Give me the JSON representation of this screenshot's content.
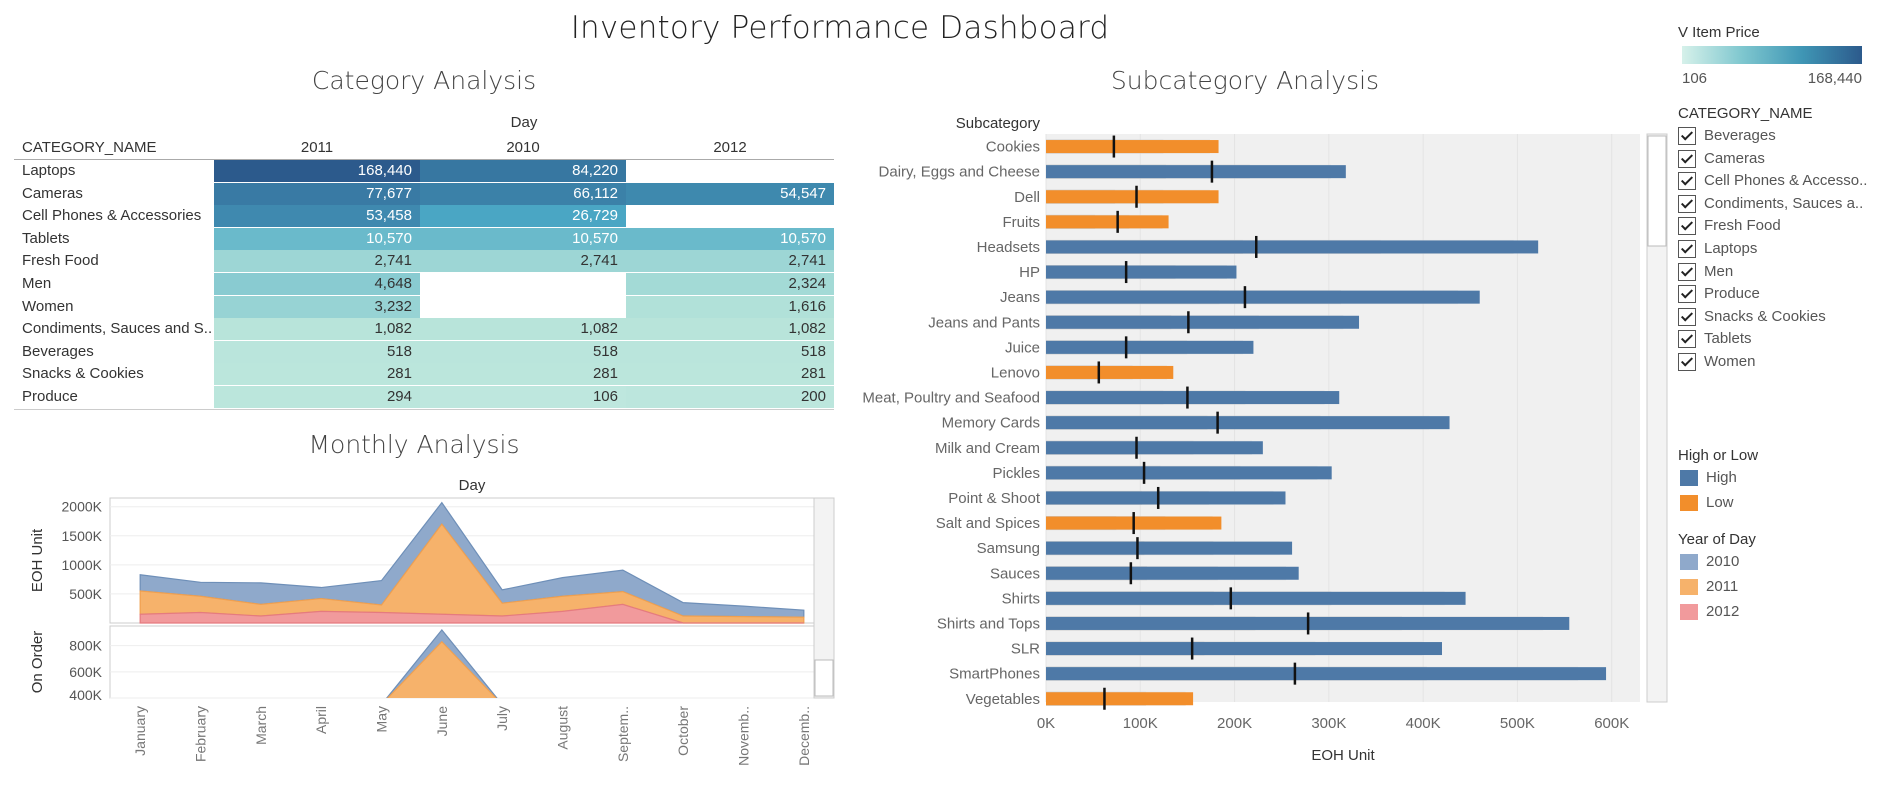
{
  "dashboard_title": "Inventory Performance Dashboard",
  "colors": {
    "high": "#4e79a7",
    "low": "#f28e2b",
    "y2010": "#8fa9cb",
    "y2011": "#f6b26b",
    "y2012": "#f19a9c",
    "price_min": "#d6f1ea",
    "price_max": "#2c5a8c"
  },
  "category_analysis": {
    "title": "Category Analysis",
    "column_group_header": "Day",
    "row_header": "CATEGORY_NAME",
    "years": [
      "2011",
      "2010",
      "2012"
    ],
    "rows": [
      {
        "name": "Laptops",
        "values": [
          "168,440",
          "84,220",
          ""
        ],
        "raw": [
          168440,
          84220,
          null
        ]
      },
      {
        "name": "Cameras",
        "values": [
          "77,677",
          "66,112",
          "54,547"
        ],
        "raw": [
          77677,
          66112,
          54547
        ]
      },
      {
        "name": "Cell Phones & Accessories",
        "values": [
          "53,458",
          "26,729",
          ""
        ],
        "raw": [
          53458,
          26729,
          null
        ]
      },
      {
        "name": "Tablets",
        "values": [
          "10,570",
          "10,570",
          "10,570"
        ],
        "raw": [
          10570,
          10570,
          10570
        ]
      },
      {
        "name": "Fresh Food",
        "values": [
          "2,741",
          "2,741",
          "2,741"
        ],
        "raw": [
          2741,
          2741,
          2741
        ]
      },
      {
        "name": "Men",
        "values": [
          "4,648",
          "",
          "2,324"
        ],
        "raw": [
          4648,
          null,
          2324
        ]
      },
      {
        "name": "Women",
        "values": [
          "3,232",
          "",
          "1,616"
        ],
        "raw": [
          3232,
          null,
          1616
        ]
      },
      {
        "name": "Condiments, Sauces and S..",
        "values": [
          "1,082",
          "1,082",
          "1,082"
        ],
        "raw": [
          1082,
          1082,
          1082
        ]
      },
      {
        "name": "Beverages",
        "values": [
          "518",
          "518",
          "518"
        ],
        "raw": [
          518,
          518,
          518
        ]
      },
      {
        "name": "Snacks & Cookies",
        "values": [
          "281",
          "281",
          "281"
        ],
        "raw": [
          281,
          281,
          281
        ]
      },
      {
        "name": "Produce",
        "values": [
          "294",
          "106",
          "200"
        ],
        "raw": [
          294,
          106,
          200
        ]
      }
    ]
  },
  "monthly_analysis": {
    "title": "Monthly Analysis",
    "x_header": "Day",
    "ylabel_top": "EOH Unit",
    "ylabel_bottom": "On Order",
    "top_ticks": [
      "2000K",
      "1500K",
      "1000K",
      "500K"
    ],
    "bottom_ticks": [
      "800K",
      "600K",
      "400K"
    ]
  },
  "subcategory_analysis": {
    "title": "Subcategory Analysis",
    "row_header": "Subcategory",
    "xlabel": "EOH Unit",
    "x_ticks": [
      "0K",
      "100K",
      "200K",
      "300K",
      "400K",
      "500K",
      "600K"
    ]
  },
  "legends": {
    "price_title": "V Item Price",
    "price_min_label": "106",
    "price_max_label": "168,440",
    "category_title": "CATEGORY_NAME",
    "categories": [
      "Beverages",
      "Cameras",
      "Cell Phones & Accesso..",
      "Condiments, Sauces a..",
      "Fresh Food",
      "Laptops",
      "Men",
      "Produce",
      "Snacks & Cookies",
      "Tablets",
      "Women"
    ],
    "high_low_title": "High or Low",
    "high_label": "High",
    "low_label": "Low",
    "year_title": "Year of Day",
    "year_labels": [
      "2010",
      "2011",
      "2012"
    ]
  },
  "chart_data": [
    {
      "type": "table",
      "title": "Category Analysis",
      "columns": [
        "2011",
        "2010",
        "2012"
      ],
      "rows": [
        "Laptops",
        "Cameras",
        "Cell Phones & Accessories",
        "Tablets",
        "Fresh Food",
        "Men",
        "Women",
        "Condiments, Sauces and S..",
        "Beverages",
        "Snacks & Cookies",
        "Produce"
      ],
      "values": [
        [
          168440,
          84220,
          null
        ],
        [
          77677,
          66112,
          54547
        ],
        [
          53458,
          26729,
          null
        ],
        [
          10570,
          10570,
          10570
        ],
        [
          2741,
          2741,
          2741
        ],
        [
          4648,
          null,
          2324
        ],
        [
          3232,
          null,
          1616
        ],
        [
          1082,
          1082,
          1082
        ],
        [
          518,
          518,
          518
        ],
        [
          281,
          281,
          281
        ],
        [
          294,
          106,
          200
        ]
      ]
    },
    {
      "type": "area",
      "title": "Monthly Analysis",
      "categories": [
        "January",
        "February",
        "March",
        "April",
        "May",
        "June",
        "July",
        "August",
        "Septem..",
        "October",
        "Novemb..",
        "Decemb.."
      ],
      "ylabel": "EOH Unit",
      "ylim": [
        0,
        2150000
      ],
      "stacked": true,
      "series": [
        {
          "name": "2012",
          "values": [
            150000,
            180000,
            120000,
            200000,
            180000,
            150000,
            120000,
            200000,
            320000,
            0,
            0,
            0
          ]
        },
        {
          "name": "2011",
          "values": [
            400000,
            280000,
            200000,
            220000,
            130000,
            1550000,
            220000,
            260000,
            220000,
            120000,
            110000,
            100000
          ]
        },
        {
          "name": "2010",
          "values": [
            280000,
            240000,
            370000,
            190000,
            420000,
            370000,
            230000,
            320000,
            370000,
            230000,
            180000,
            120000
          ]
        }
      ]
    },
    {
      "type": "area",
      "title": "",
      "categories": [
        "January",
        "February",
        "March",
        "April",
        "May",
        "June",
        "July",
        "August",
        "Septem..",
        "October",
        "Novemb..",
        "Decemb.."
      ],
      "ylabel": "On Order",
      "ylim": [
        400000,
        950000
      ],
      "series": [
        {
          "name": "2011",
          "values": [
            null,
            null,
            null,
            null,
            350000,
            830000,
            350000,
            null,
            null,
            null,
            null,
            null
          ]
        },
        {
          "name": "2010",
          "values": [
            null,
            null,
            null,
            null,
            350000,
            920000,
            350000,
            null,
            null,
            null,
            null,
            null
          ]
        }
      ]
    },
    {
      "type": "bar",
      "orientation": "horizontal",
      "title": "Subcategory Analysis",
      "xlabel": "EOH Unit",
      "xlim": [
        0,
        630000
      ],
      "categories": [
        "Cookies",
        "Dairy, Eggs and Cheese",
        "Dell",
        "Fruits",
        "Headsets",
        "HP",
        "Jeans",
        "Jeans and Pants",
        "Juice",
        "Lenovo",
        "Meat, Poultry and Seafood",
        "Memory Cards",
        "Milk and Cream",
        "Pickles",
        "Point & Shoot",
        "Salt and Spices",
        "Samsung",
        "Sauces",
        "Shirts",
        "Shirts and Tops",
        "SLR",
        "SmartPhones",
        "Vegetables"
      ],
      "values": [
        183000,
        318000,
        183000,
        130000,
        522000,
        202000,
        460000,
        332000,
        220000,
        135000,
        311000,
        428000,
        230000,
        303000,
        254000,
        186000,
        261000,
        268000,
        445000,
        555000,
        420000,
        594000,
        156000
      ],
      "reference_values": [
        72000,
        176000,
        96000,
        76000,
        223000,
        85000,
        211000,
        151000,
        85000,
        56000,
        150000,
        182000,
        96000,
        104000,
        119000,
        93000,
        97000,
        90000,
        196000,
        278000,
        155000,
        264000,
        62000
      ],
      "high_or_low": [
        "Low",
        "High",
        "Low",
        "Low",
        "High",
        "High",
        "High",
        "High",
        "High",
        "Low",
        "High",
        "High",
        "High",
        "High",
        "High",
        "Low",
        "High",
        "High",
        "High",
        "High",
        "High",
        "High",
        "Low"
      ]
    }
  ]
}
